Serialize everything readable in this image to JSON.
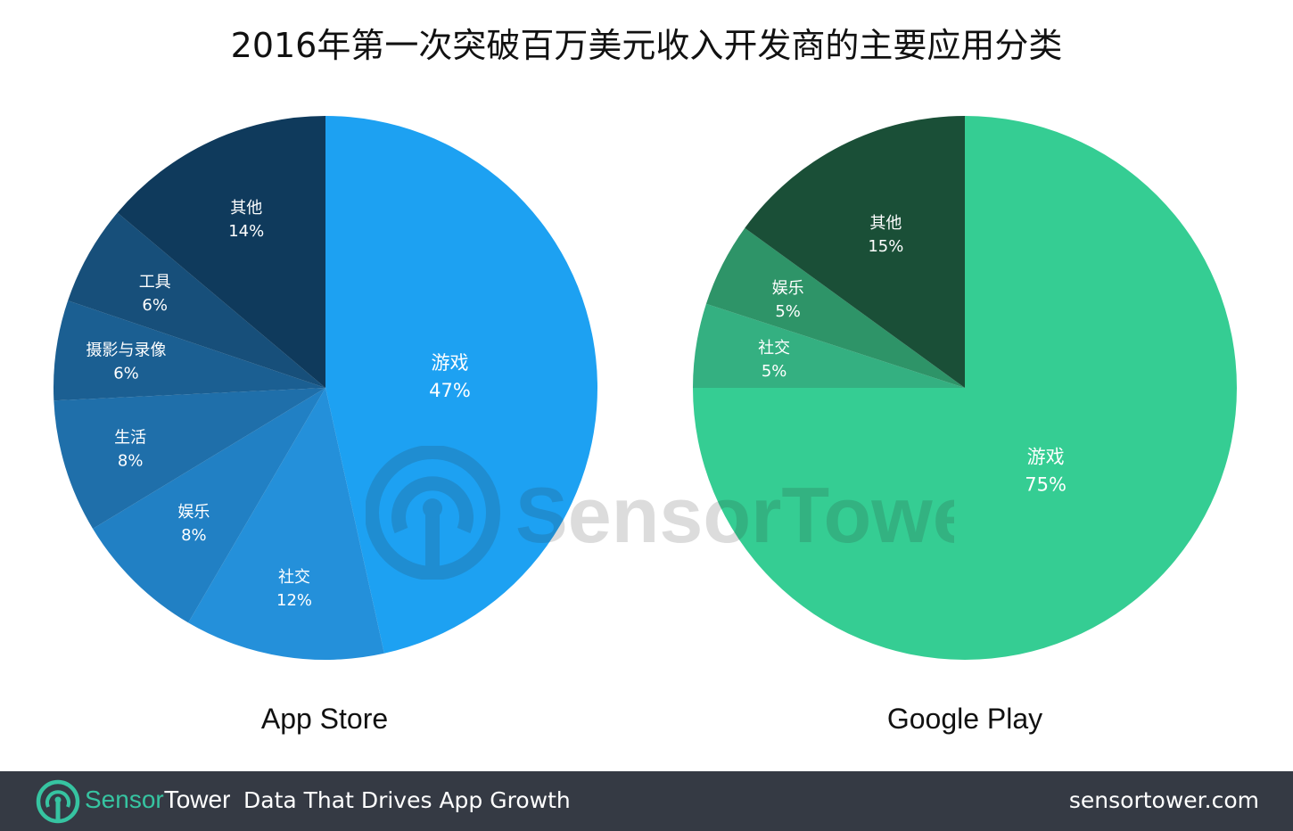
{
  "title": "2016年第一次突破百万美元收入开发商的主要应用分类",
  "chart_data": [
    {
      "type": "pie",
      "title": "App Store",
      "slices": [
        {
          "label": "游戏",
          "value": 47,
          "text": "47%",
          "color": "#1da1f2"
        },
        {
          "label": "社交",
          "value": 12,
          "text": "12%",
          "color": "#2490da"
        },
        {
          "label": "娱乐",
          "value": 8,
          "text": "8%",
          "color": "#2180c4"
        },
        {
          "label": "生活",
          "value": 8,
          "text": "8%",
          "color": "#1f6faa"
        },
        {
          "label": "摄影与录像",
          "value": 6,
          "text": "6%",
          "color": "#1b5f92"
        },
        {
          "label": "工具",
          "value": 6,
          "text": "6%",
          "color": "#174f7a"
        },
        {
          "label": "其他",
          "value": 14,
          "text": "14%",
          "color": "#0f3a5c"
        }
      ]
    },
    {
      "type": "pie",
      "title": "Google Play",
      "slices": [
        {
          "label": "游戏",
          "value": 75,
          "text": "75%",
          "color": "#35cd93"
        },
        {
          "label": "社交",
          "value": 5,
          "text": "5%",
          "color": "#34b081"
        },
        {
          "label": "娱乐",
          "value": 5,
          "text": "5%",
          "color": "#2e9468"
        },
        {
          "label": "其他",
          "value": 15,
          "text": "15%",
          "color": "#1a4f37"
        }
      ]
    }
  ],
  "watermark": {
    "text": "SensorTower",
    "icon": "sensortower-logo-icon"
  },
  "footer": {
    "brand_part1": "Sensor",
    "brand_part2": "Tower",
    "tagline": "Data That Drives App Growth",
    "website": "sensortower.com",
    "icon": "sensortower-logo-icon"
  }
}
